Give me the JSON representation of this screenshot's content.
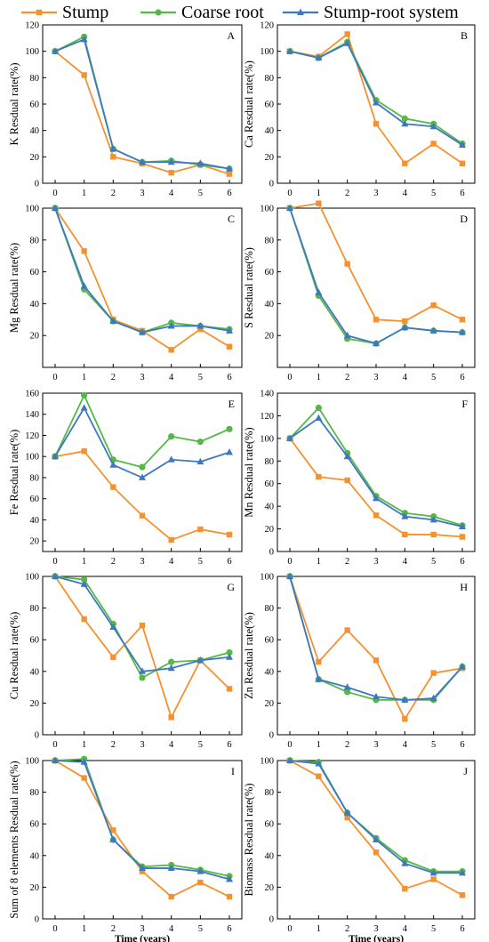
{
  "legend": {
    "items": [
      {
        "name": "Stump",
        "color": "#F5922F",
        "marker": "square"
      },
      {
        "name": "Coarse root",
        "color": "#54B947",
        "marker": "circle"
      },
      {
        "name": "Stump-root system",
        "color": "#3F78C0",
        "marker": "triangle"
      }
    ]
  },
  "chart_data": [
    {
      "type": "line",
      "panel": "A",
      "ylabel": "K Resdual rate(%)",
      "xlabel": "",
      "x": [
        0,
        1,
        2,
        3,
        4,
        5,
        6
      ],
      "ylim": [
        0,
        120
      ],
      "yticks": [
        0,
        20,
        40,
        60,
        80,
        100,
        120
      ],
      "series": [
        {
          "name": "Stump",
          "values": [
            100,
            82,
            20,
            15,
            8,
            14,
            7
          ]
        },
        {
          "name": "Coarse root",
          "values": [
            100,
            111,
            26,
            16,
            17,
            14,
            11
          ]
        },
        {
          "name": "Stump-root system",
          "values": [
            100,
            109,
            26,
            16,
            16,
            15,
            11
          ]
        }
      ]
    },
    {
      "type": "line",
      "panel": "B",
      "ylabel": "Ca Resdual rate(%)",
      "xlabel": "",
      "x": [
        0,
        1,
        2,
        3,
        4,
        5,
        6
      ],
      "ylim": [
        0,
        120
      ],
      "yticks": [
        0,
        20,
        40,
        60,
        80,
        100,
        120
      ],
      "series": [
        {
          "name": "Stump",
          "values": [
            100,
            96,
            113,
            45,
            15,
            30,
            15
          ]
        },
        {
          "name": "Coarse root",
          "values": [
            100,
            95,
            107,
            63,
            49,
            45,
            30
          ]
        },
        {
          "name": "Stump-root system",
          "values": [
            100,
            95,
            106,
            61,
            45,
            43,
            29
          ]
        }
      ]
    },
    {
      "type": "line",
      "panel": "C",
      "ylabel": "Mg Resdual rate(%)",
      "xlabel": "",
      "x": [
        0,
        1,
        2,
        3,
        4,
        5,
        6
      ],
      "ylim": [
        0,
        100
      ],
      "yticks": [
        20,
        40,
        60,
        80,
        100
      ],
      "series": [
        {
          "name": "Stump",
          "values": [
            100,
            73,
            30,
            23,
            11,
            24,
            13
          ]
        },
        {
          "name": "Coarse root",
          "values": [
            100,
            49,
            29,
            22,
            28,
            26,
            24
          ]
        },
        {
          "name": "Stump-root system",
          "values": [
            100,
            51,
            29,
            22,
            26,
            26,
            23
          ]
        }
      ]
    },
    {
      "type": "line",
      "panel": "D",
      "ylabel": "S Resdual rate(%)",
      "xlabel": "",
      "x": [
        0,
        1,
        2,
        3,
        4,
        5,
        6
      ],
      "ylim": [
        0,
        100
      ],
      "yticks": [
        20,
        40,
        60,
        80,
        100
      ],
      "series": [
        {
          "name": "Stump",
          "values": [
            100,
            103,
            65,
            30,
            29,
            39,
            30
          ]
        },
        {
          "name": "Coarse root",
          "values": [
            100,
            45,
            18,
            15,
            25,
            23,
            22
          ]
        },
        {
          "name": "Stump-root system",
          "values": [
            100,
            47,
            20,
            15,
            25,
            23,
            22
          ]
        }
      ]
    },
    {
      "type": "line",
      "panel": "E",
      "ylabel": "Fe Resdual rate(%)",
      "xlabel": "",
      "x": [
        0,
        1,
        2,
        3,
        4,
        5,
        6
      ],
      "ylim": [
        10,
        160
      ],
      "yticks": [
        20,
        40,
        60,
        80,
        100,
        120,
        140,
        160
      ],
      "series": [
        {
          "name": "Stump",
          "values": [
            100,
            105,
            71,
            44,
            21,
            31,
            26
          ]
        },
        {
          "name": "Coarse root",
          "values": [
            100,
            158,
            97,
            90,
            119,
            114,
            126
          ]
        },
        {
          "name": "Stump-root system",
          "values": [
            100,
            146,
            92,
            80,
            97,
            95,
            104
          ]
        }
      ]
    },
    {
      "type": "line",
      "panel": "F",
      "ylabel": "Mn Resdual rate(%)",
      "xlabel": "",
      "x": [
        0,
        1,
        2,
        3,
        4,
        5,
        6
      ],
      "ylim": [
        0,
        140
      ],
      "yticks": [
        0,
        20,
        40,
        60,
        80,
        100,
        120,
        140
      ],
      "series": [
        {
          "name": "Stump",
          "values": [
            100,
            66,
            63,
            32,
            15,
            15,
            13
          ]
        },
        {
          "name": "Coarse root",
          "values": [
            100,
            127,
            87,
            49,
            34,
            31,
            23
          ]
        },
        {
          "name": "Stump-root system",
          "values": [
            100,
            118,
            84,
            47,
            31,
            28,
            22
          ]
        }
      ]
    },
    {
      "type": "line",
      "panel": "G",
      "ylabel": "Cu Resdual rate(%)",
      "xlabel": "",
      "x": [
        0,
        1,
        2,
        3,
        4,
        5,
        6
      ],
      "ylim": [
        0,
        100
      ],
      "yticks": [
        0,
        20,
        40,
        60,
        80,
        100
      ],
      "series": [
        {
          "name": "Stump",
          "values": [
            100,
            73,
            49,
            69,
            11,
            47,
            29
          ]
        },
        {
          "name": "Coarse root",
          "values": [
            100,
            98,
            70,
            36,
            46,
            47,
            52
          ]
        },
        {
          "name": "Stump-root system",
          "values": [
            100,
            95,
            68,
            40,
            42,
            47,
            49
          ]
        }
      ]
    },
    {
      "type": "line",
      "panel": "H",
      "ylabel": "Zn Resdual rate(%)",
      "xlabel": "",
      "x": [
        0,
        1,
        2,
        3,
        4,
        5,
        6
      ],
      "ylim": [
        0,
        100
      ],
      "yticks": [
        0,
        20,
        40,
        60,
        80,
        100
      ],
      "series": [
        {
          "name": "Stump",
          "values": [
            100,
            46,
            66,
            47,
            10,
            39,
            42
          ]
        },
        {
          "name": "Coarse root",
          "values": [
            100,
            35,
            27,
            22,
            22,
            22,
            43
          ]
        },
        {
          "name": "Stump-root system",
          "values": [
            100,
            35,
            30,
            24,
            22,
            23,
            43
          ]
        }
      ]
    },
    {
      "type": "line",
      "panel": "I",
      "ylabel": "Sum of 8 elements Resdual rate(%)",
      "xlabel": "Time (years)",
      "x": [
        0,
        1,
        2,
        3,
        4,
        5,
        6
      ],
      "ylim": [
        0,
        100
      ],
      "yticks": [
        0,
        20,
        40,
        60,
        80,
        100
      ],
      "series": [
        {
          "name": "Stump",
          "values": [
            100,
            89,
            56,
            30,
            14,
            23,
            14
          ]
        },
        {
          "name": "Coarse root",
          "values": [
            100,
            101,
            50,
            33,
            34,
            31,
            27
          ]
        },
        {
          "name": "Stump-root system",
          "values": [
            100,
            99,
            50,
            32,
            32,
            30,
            25
          ]
        }
      ]
    },
    {
      "type": "line",
      "panel": "J",
      "ylabel": "Biomass Resdual rate(%)",
      "xlabel": "Time (years)",
      "x": [
        0,
        1,
        2,
        3,
        4,
        5,
        6
      ],
      "ylim": [
        0,
        100
      ],
      "yticks": [
        0,
        20,
        40,
        60,
        80,
        100
      ],
      "series": [
        {
          "name": "Stump",
          "values": [
            100,
            90,
            64,
            42,
            19,
            25,
            15
          ]
        },
        {
          "name": "Coarse root",
          "values": [
            100,
            99,
            67,
            51,
            37,
            30,
            30
          ]
        },
        {
          "name": "Stump-root system",
          "values": [
            100,
            98,
            67,
            50,
            35,
            29,
            29
          ]
        }
      ]
    }
  ]
}
